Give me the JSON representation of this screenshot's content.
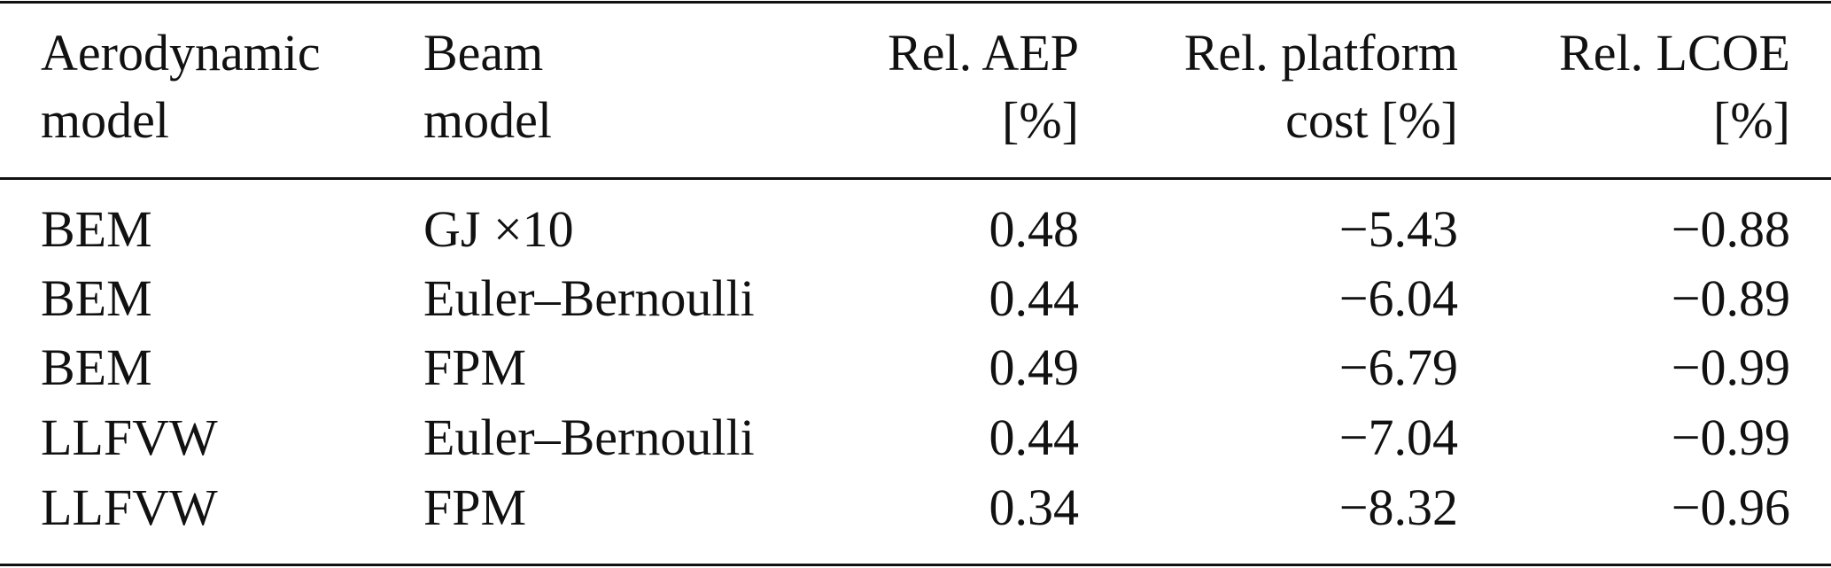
{
  "table": {
    "header": [
      [
        "Aerodynamic",
        "model"
      ],
      [
        "Beam",
        "model"
      ],
      [
        "Rel. AEP",
        "[%]"
      ],
      [
        "Rel. platform",
        "cost [%]"
      ],
      [
        "Rel. LCOE",
        "[%]"
      ]
    ],
    "rows": [
      [
        "BEM",
        "GJ ×10",
        "0.48",
        "−5.43",
        "−0.88"
      ],
      [
        "BEM",
        "Euler–Bernoulli",
        "0.44",
        "−6.04",
        "−0.89"
      ],
      [
        "BEM",
        "FPM",
        "0.49",
        "−6.79",
        "−0.99"
      ],
      [
        "LLFVW",
        "Euler–Bernoulli",
        "0.44",
        "−7.04",
        "−0.99"
      ],
      [
        "LLFVW",
        "FPM",
        "0.34",
        "−8.32",
        "−0.96"
      ]
    ]
  }
}
